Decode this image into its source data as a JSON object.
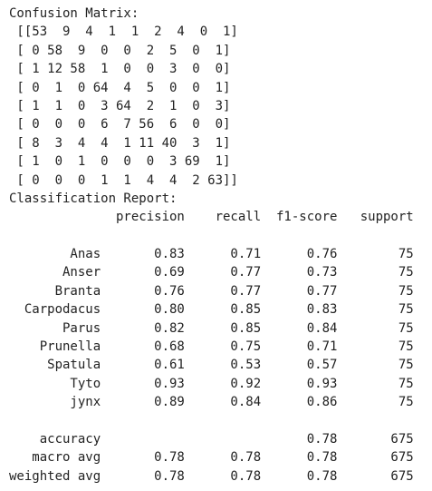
{
  "output": {
    "lines": [
      "Confusion Matrix:",
      " [[53  9  4  1  1  2  4  0  1]",
      " [ 0 58  9  0  0  2  5  0  1]",
      " [ 1 12 58  1  0  0  3  0  0]",
      " [ 0  1  0 64  4  5  0  0  1]",
      " [ 1  1  0  3 64  2  1  0  3]",
      " [ 0  0  0  6  7 56  6  0  0]",
      " [ 8  3  4  4  1 11 40  3  1]",
      " [ 1  0  1  0  0  0  3 69  1]",
      " [ 0  0  0  1  1  4  4  2 63]]",
      "Classification Report:",
      "              precision    recall  f1-score   support",
      "",
      "        Anas       0.83      0.71      0.76        75",
      "       Anser       0.69      0.77      0.73        75",
      "      Branta       0.76      0.77      0.77        75",
      "  Carpodacus       0.80      0.85      0.83        75",
      "       Parus       0.82      0.85      0.84        75",
      "    Prunella       0.68      0.75      0.71        75",
      "     Spatula       0.61      0.53      0.57        75",
      "        Tyto       0.93      0.92      0.93        75",
      "        jynx       0.89      0.84      0.86        75",
      "",
      "    accuracy                           0.78       675",
      "   macro avg       0.78      0.78      0.78       675",
      "weighted avg       0.78      0.78      0.78       675"
    ]
  }
}
